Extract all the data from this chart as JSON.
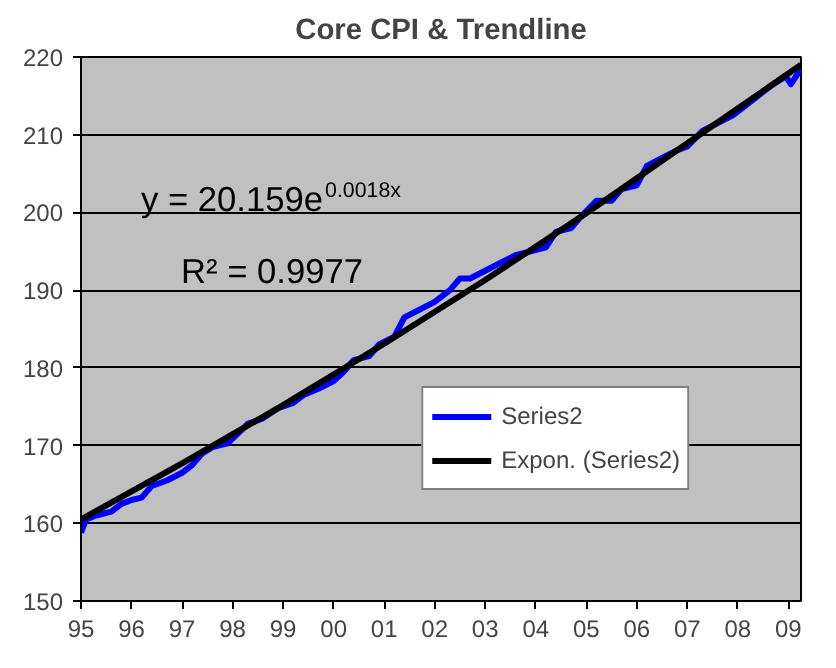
{
  "chart_data": {
    "type": "line",
    "title": "Core CPI & Trendline",
    "annotations": [
      "y = 20.159e$^{0.0018x}$",
      "R² = 0.9977"
    ],
    "xlim": [
      1995,
      2009.25
    ],
    "xticks": [
      {
        "value": 1995,
        "label": "95"
      },
      {
        "value": 1996,
        "label": "96"
      },
      {
        "value": 1997,
        "label": "97"
      },
      {
        "value": 1998,
        "label": "98"
      },
      {
        "value": 1999,
        "label": "99"
      },
      {
        "value": 2000,
        "label": "00"
      },
      {
        "value": 2001,
        "label": "01"
      },
      {
        "value": 2002,
        "label": "02"
      },
      {
        "value": 2003,
        "label": "03"
      },
      {
        "value": 2004,
        "label": "04"
      },
      {
        "value": 2005,
        "label": "05"
      },
      {
        "value": 2006,
        "label": "06"
      },
      {
        "value": 2007,
        "label": "07"
      },
      {
        "value": 2008,
        "label": "08"
      },
      {
        "value": 2009,
        "label": "09"
      }
    ],
    "ylim": [
      150,
      220
    ],
    "yticks": [
      150,
      160,
      170,
      180,
      190,
      200,
      210,
      220
    ],
    "grid": "y",
    "legend": "bottom right",
    "series": [
      {
        "name": "Series2",
        "color": "#0000ff",
        "x": [
          1995.0,
          1995.1,
          1995.3,
          1995.6,
          1995.8,
          1996.0,
          1996.2,
          1996.4,
          1996.7,
          1997.0,
          1997.2,
          1997.4,
          1997.6,
          1997.9,
          1998.1,
          1998.3,
          1998.6,
          1998.9,
          1999.2,
          1999.4,
          1999.7,
          2000.0,
          2000.2,
          2000.4,
          2000.7,
          2000.9,
          2001.2,
          2001.4,
          2001.7,
          2002.0,
          2002.3,
          2002.5,
          2002.7,
          2003.0,
          2003.3,
          2003.6,
          2003.9,
          2004.2,
          2004.4,
          2004.7,
          2004.9,
          2005.2,
          2005.5,
          2005.7,
          2006.0,
          2006.2,
          2006.5,
          2006.8,
          2007.0,
          2007.3,
          2007.6,
          2007.9,
          2008.1,
          2008.4,
          2008.7,
          2008.95,
          2009.05,
          2009.25
        ],
        "values": [
          158.8,
          160.5,
          161,
          161.5,
          162.5,
          163,
          163.3,
          164.8,
          165.5,
          166.5,
          167.5,
          169,
          169.8,
          170.3,
          171.5,
          172.8,
          173.5,
          174.8,
          175.5,
          176.5,
          177.3,
          178.3,
          179.5,
          181,
          181.5,
          183,
          184,
          186.5,
          187.5,
          188.5,
          190,
          191.5,
          191.5,
          192.5,
          193.5,
          194.5,
          195,
          195.5,
          197.5,
          198,
          199.5,
          201.5,
          201.5,
          203,
          203.5,
          206,
          207,
          208,
          208.5,
          210.5,
          211.5,
          212.5,
          213.5,
          215,
          216.5,
          217.5,
          216.5,
          218.5
        ]
      },
      {
        "name": "Expon. (Series2)",
        "color": "#000000",
        "x": [
          1995,
          1997,
          1999,
          2001,
          2003,
          2005,
          2007,
          2009.25
        ],
        "values": [
          160.5,
          167.7,
          175.2,
          183.1,
          191.3,
          199.9,
          208.9,
          219
        ]
      }
    ]
  }
}
